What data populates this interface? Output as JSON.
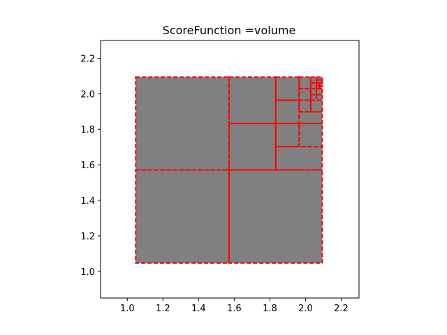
{
  "chart_data": {
    "type": "heatmap",
    "title": "ScoreFunction =volume",
    "xlabel": "",
    "ylabel": "",
    "xlim": [
      0.85,
      2.3
    ],
    "ylim": [
      0.85,
      2.3
    ],
    "x_ticks": [
      "1.0",
      "1.2",
      "1.4",
      "1.6",
      "1.8",
      "2.0",
      "2.2"
    ],
    "y_ticks": [
      "1.0",
      "1.2",
      "1.4",
      "1.6",
      "1.8",
      "2.0",
      "2.2"
    ],
    "grid": false,
    "filled_region": {
      "x0": 1.047,
      "x1": 2.094,
      "y0": 1.047,
      "y1": 2.094,
      "color": "#808080"
    },
    "boxes": [
      [
        1.047,
        1.571,
        1.047,
        1.571
      ],
      [
        1.571,
        2.094,
        1.047,
        1.571
      ],
      [
        1.047,
        1.571,
        1.571,
        2.094
      ],
      [
        1.571,
        1.833,
        1.571,
        1.833
      ],
      [
        1.833,
        2.094,
        1.571,
        1.702
      ],
      [
        1.833,
        1.964,
        1.702,
        1.833
      ],
      [
        1.964,
        2.094,
        1.702,
        1.833
      ],
      [
        1.571,
        1.833,
        1.833,
        2.094
      ],
      [
        1.833,
        1.964,
        1.833,
        1.964
      ],
      [
        1.964,
        2.094,
        1.833,
        1.898
      ],
      [
        1.964,
        2.029,
        1.898,
        1.964
      ],
      [
        2.029,
        2.094,
        1.898,
        1.964
      ],
      [
        1.833,
        1.964,
        1.964,
        2.094
      ],
      [
        1.964,
        2.029,
        1.964,
        2.029
      ],
      [
        1.964,
        2.029,
        2.029,
        2.094
      ],
      [
        2.029,
        2.061,
        1.964,
        1.996
      ],
      [
        2.061,
        2.094,
        1.964,
        1.996
      ],
      [
        2.029,
        2.061,
        1.996,
        2.029
      ],
      [
        2.061,
        2.094,
        1.996,
        2.029
      ],
      [
        2.029,
        2.061,
        2.029,
        2.061
      ],
      [
        2.061,
        2.078,
        2.029,
        2.045
      ],
      [
        2.078,
        2.094,
        2.029,
        2.045
      ],
      [
        2.061,
        2.078,
        2.045,
        2.061
      ],
      [
        2.078,
        2.094,
        2.045,
        2.061
      ],
      [
        2.029,
        2.061,
        2.061,
        2.094
      ],
      [
        2.061,
        2.094,
        2.061,
        2.078
      ],
      [
        2.061,
        2.094,
        2.078,
        2.094
      ]
    ],
    "box_color": "#ff0000",
    "box_style": "dashed"
  }
}
